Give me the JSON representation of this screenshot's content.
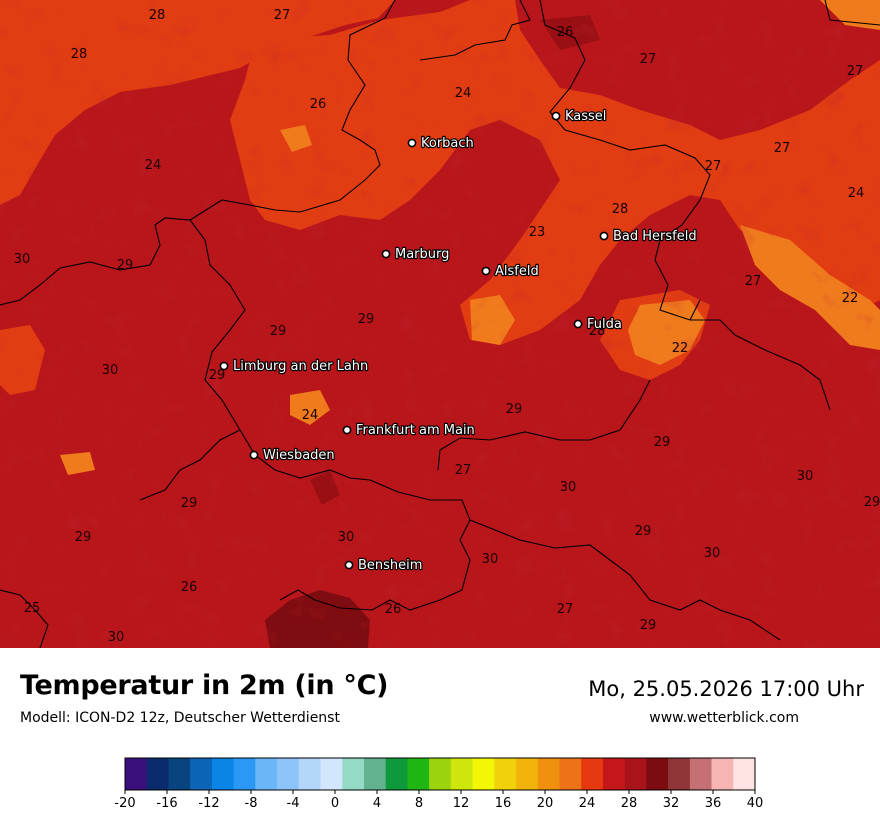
{
  "map": {
    "background_color": "#b8161b",
    "cities": [
      {
        "name": "Korbach"
      },
      {
        "name": "Kassel"
      },
      {
        "name": "Bad Hersfeld"
      },
      {
        "name": "Marburg"
      },
      {
        "name": "Alsfeld"
      },
      {
        "name": "Fulda"
      },
      {
        "name": "Limburg an der Lahn"
      },
      {
        "name": "Frankfurt am Main"
      },
      {
        "name": "Wiesbaden"
      },
      {
        "name": "Bensheim"
      }
    ],
    "temperature_labels": [
      "28",
      "27",
      "28",
      "26",
      "27",
      "27",
      "26",
      "24",
      "24",
      "27",
      "27",
      "24",
      "28",
      "23",
      "30",
      "29",
      "27",
      "22",
      "29",
      "29",
      "28",
      "22",
      "30",
      "29",
      "24",
      "29",
      "29",
      "27",
      "30",
      "29",
      "30",
      "29",
      "29",
      "30",
      "30",
      "29",
      "26",
      "25",
      "26",
      "27",
      "29",
      "30",
      "30"
    ]
  },
  "header": {
    "title": "Temperatur in 2m (in °C)",
    "subtitle": "Modell: ICON-D2 12z, Deutscher Wetterdienst",
    "datetime": "Mo, 25.05.2026 17:00 Uhr",
    "website": "www.wetterblick.com"
  },
  "legend": {
    "colors": [
      "#3b0f7c",
      "#0a2c6e",
      "#08447e",
      "#0b64b6",
      "#0a85e6",
      "#2b98f5",
      "#6bb6f7",
      "#8cc4f9",
      "#b3d6fb",
      "#d2e6fd",
      "#95dac6",
      "#62b18f",
      "#0e9a3a",
      "#1fb512",
      "#9bd40e",
      "#cfe60d",
      "#f3f604",
      "#f0d20c",
      "#f2b40b",
      "#f1900e",
      "#ee7217",
      "#e6390f",
      "#c5161a",
      "#a8141a",
      "#7b0d10",
      "#8f3437",
      "#c57174",
      "#f6b5b2",
      "#ffe3e3"
    ],
    "tick_labels": [
      "-20",
      "-16",
      "-12",
      "-8",
      "-4",
      "0",
      "4",
      "8",
      "12",
      "16",
      "20",
      "24",
      "28",
      "32",
      "36",
      "40"
    ]
  }
}
